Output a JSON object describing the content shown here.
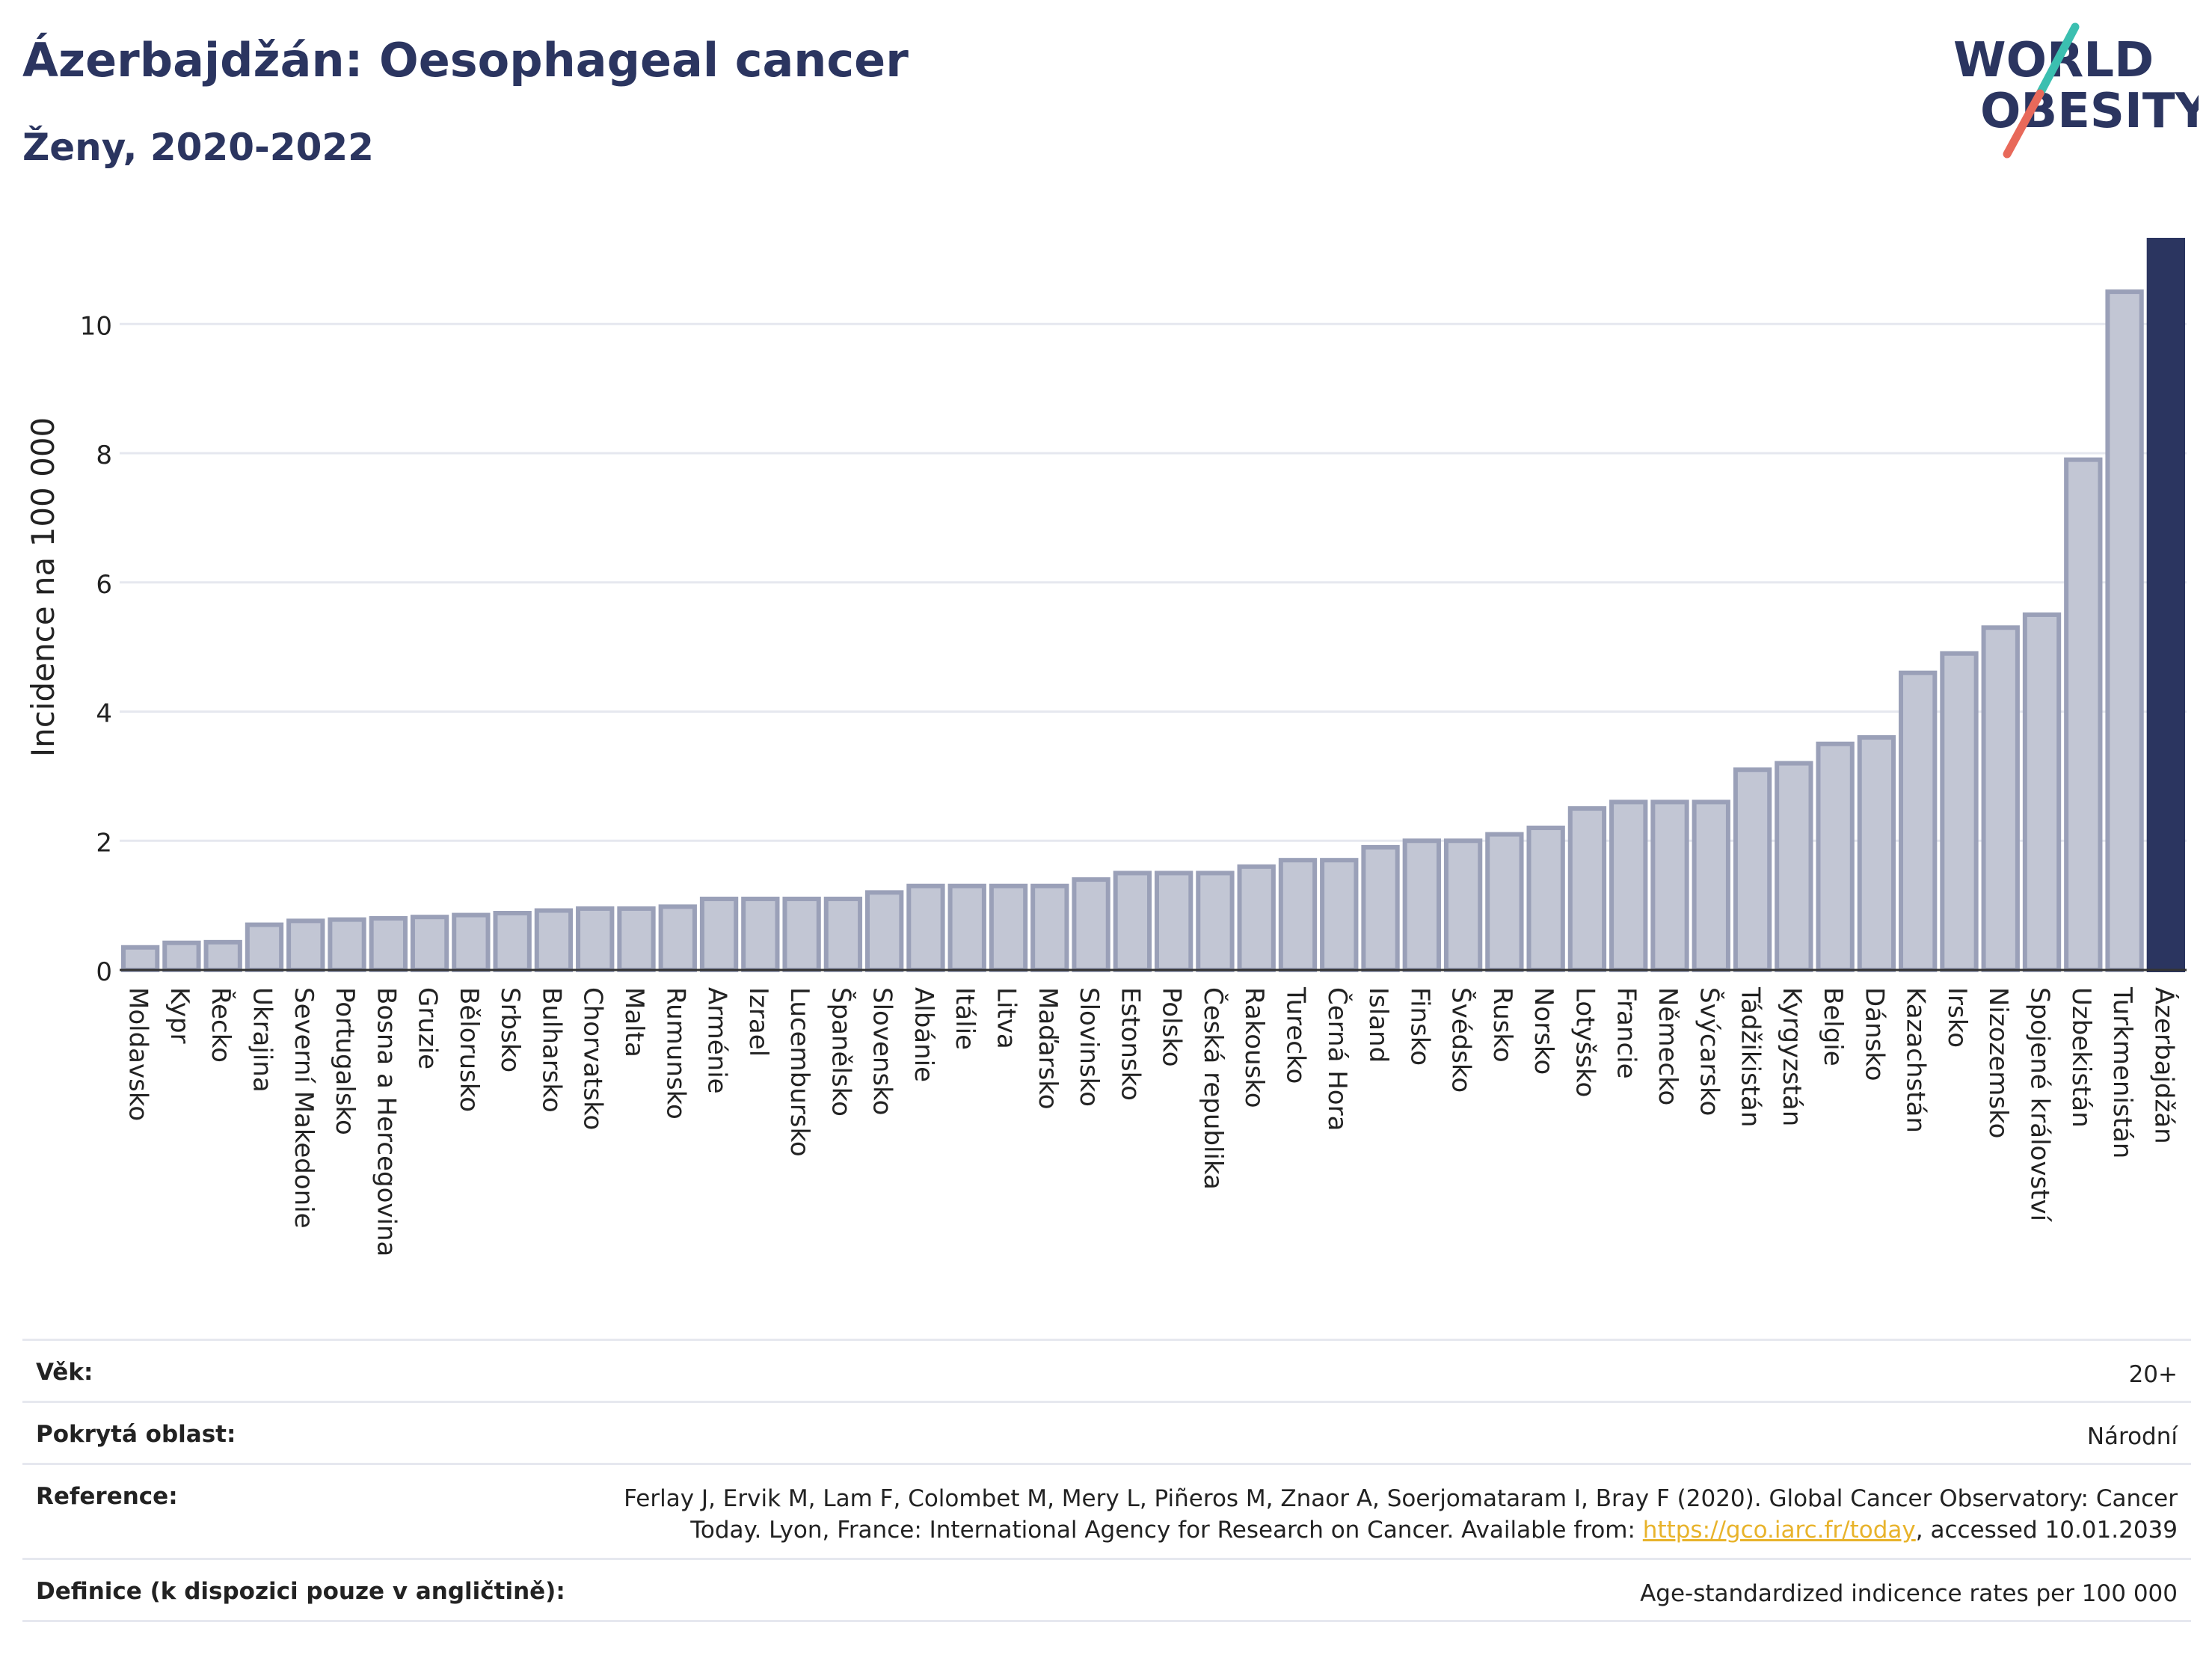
{
  "header": {
    "title": "Ázerbajdžán: Oesophageal cancer",
    "subtitle": "Ženy, 2020-2022"
  },
  "logo": {
    "line1": "WORLD",
    "line2": "OBESITY",
    "colors": {
      "text": "#2b3560",
      "slash_teal": "#3bbfb0",
      "slash_red": "#e8695a"
    }
  },
  "chart_data": {
    "type": "bar",
    "ylabel": "Incidence na 100 000",
    "xlabel": "",
    "ylim": [
      0,
      11.3
    ],
    "yticks": [
      0,
      2,
      4,
      6,
      8,
      10
    ],
    "grid": true,
    "highlight": "Ázerbajdžán",
    "colors": {
      "bar": "#c2c6d4",
      "bar_border": "#9aa0b8",
      "highlight": "#2b3560",
      "grid": "#e6e8ef"
    },
    "categories": [
      "Moldavsko",
      "Kypr",
      "Řecko",
      "Ukrajina",
      "Severní Makedonie",
      "Portugalsko",
      "Bosna a Hercegovina",
      "Gruzie",
      "Bělorusko",
      "Srbsko",
      "Bulharsko",
      "Chorvatsko",
      "Malta",
      "Rumunsko",
      "Arménie",
      "Izrael",
      "Lucembursko",
      "Španělsko",
      "Slovensko",
      "Albánie",
      "Itálie",
      "Litva",
      "Maďarsko",
      "Slovinsko",
      "Estonsko",
      "Polsko",
      "Česká republika",
      "Rakousko",
      "Turecko",
      "Černá Hora",
      "Island",
      "Finsko",
      "Švédsko",
      "Rusko",
      "Norsko",
      "Lotyšsko",
      "Francie",
      "Německo",
      "Švýcarsko",
      "Tádžikistán",
      "Kyrgyzstán",
      "Belgie",
      "Dánsko",
      "Kazachstán",
      "Irsko",
      "Nizozemsko",
      "Spojené království",
      "Uzbekistán",
      "Turkmenistán",
      "Ázerbajdžán"
    ],
    "values": [
      0.35,
      0.42,
      0.43,
      0.7,
      0.76,
      0.78,
      0.8,
      0.82,
      0.85,
      0.88,
      0.92,
      0.95,
      0.95,
      0.98,
      1.1,
      1.1,
      1.1,
      1.1,
      1.2,
      1.3,
      1.3,
      1.3,
      1.3,
      1.4,
      1.5,
      1.5,
      1.5,
      1.6,
      1.7,
      1.7,
      1.9,
      2.0,
      2.0,
      2.1,
      2.2,
      2.5,
      2.6,
      2.6,
      2.6,
      3.1,
      3.2,
      3.5,
      3.6,
      4.6,
      4.9,
      5.3,
      5.5,
      7.9,
      10.5,
      11.3
    ]
  },
  "info": {
    "age": {
      "label": "Věk:",
      "value": "20+"
    },
    "area": {
      "label": "Pokrytá oblast:",
      "value": "Národní"
    },
    "reference": {
      "label": "Reference:",
      "line1": "Ferlay J, Ervik M, Lam F, Colombet M, Mery L, Piñeros M, Znaor A, Soerjomataram I, Bray F (2020). Global Cancer Observatory: Cancer",
      "line2_prefix": "Today. Lyon, France: International Agency for Research on Cancer. Available from: ",
      "link": "https://gco.iarc.fr/today",
      "line2_suffix": ", accessed 10.01.2039"
    },
    "definition": {
      "label": "Definice (k dispozici pouze v angličtině):",
      "value": "Age-standardized indicence rates per 100 000"
    }
  }
}
